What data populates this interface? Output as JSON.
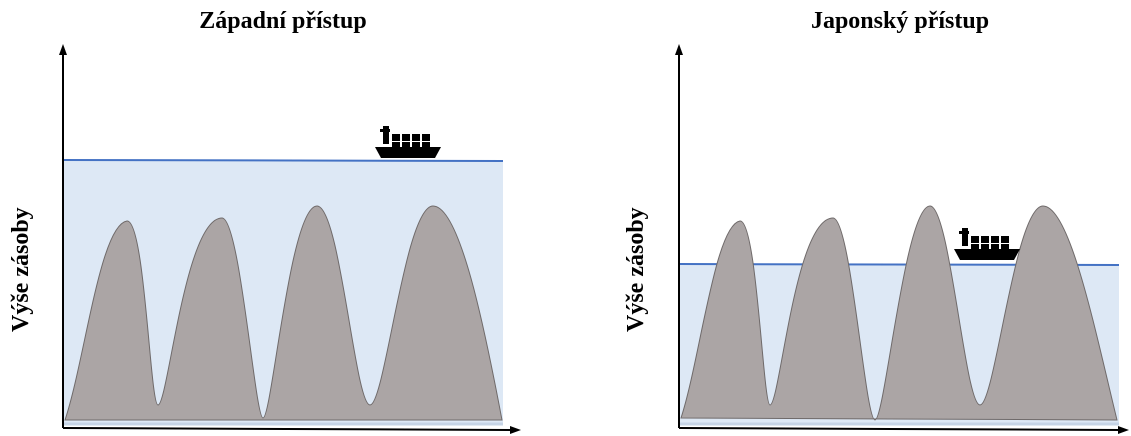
{
  "panels": [
    {
      "id": "western",
      "title": "Západní přístup",
      "ylabel": "Výše zásoby"
    },
    {
      "id": "japanese",
      "title": "Japonský přístup",
      "ylabel": "Výše zásoby"
    }
  ],
  "colors": {
    "water": "#dde8f5",
    "water_line": "#4472c4",
    "rocks": "#aba5a5",
    "rocks_edge": "#6f6a6a",
    "axes": "#000000",
    "ship": "#000000"
  },
  "icons": {
    "ship": "cargo-ship-icon"
  }
}
